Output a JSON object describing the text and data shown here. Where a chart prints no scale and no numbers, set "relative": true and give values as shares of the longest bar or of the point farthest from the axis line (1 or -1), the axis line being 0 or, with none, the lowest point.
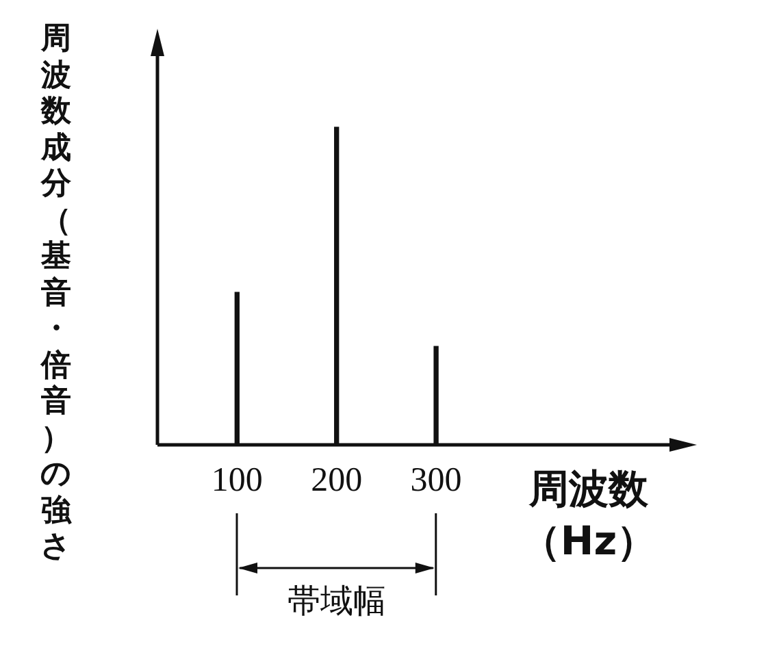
{
  "chart_data": {
    "type": "bar",
    "relative": true,
    "xlabel": "周波数（Hz）",
    "ylabel": "周波数成分（基音・倍音）の強さ",
    "x": [
      100,
      200,
      300
    ],
    "values": [
      0.48,
      1,
      0.31
    ],
    "color": "#111111",
    "xlim": [
      20,
      540
    ],
    "xticks": [
      100,
      200,
      300
    ],
    "grid": false,
    "legend": false,
    "annotations": [
      "帯域幅"
    ]
  }
}
